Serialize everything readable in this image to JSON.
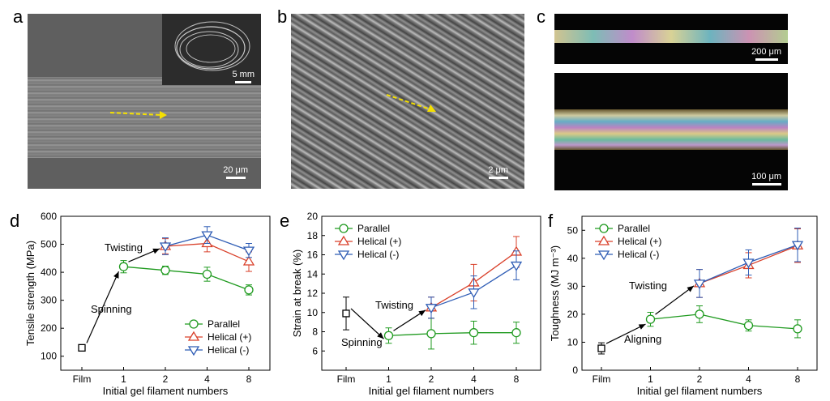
{
  "panels": {
    "a": {
      "letter": "a",
      "scale_main": "20 μm",
      "scale_inset": "5 mm"
    },
    "b": {
      "letter": "b",
      "scale": "2 μm"
    },
    "c": {
      "letter": "c",
      "scale_top": "200 μm",
      "scale_bottom": "100 μm"
    },
    "d": {
      "letter": "d"
    },
    "e": {
      "letter": "e"
    },
    "f": {
      "letter": "f"
    }
  },
  "colors": {
    "parallel": "#1f9a1f",
    "helical_plus": "#d9402a",
    "helical_minus": "#2f5db5",
    "film": "#000000",
    "arrow_yellow": "#f5e000"
  },
  "chart_data": [
    {
      "type": "line",
      "panel": "d",
      "categories": [
        "Film",
        "1",
        "2",
        "4",
        "8"
      ],
      "xlabel": "Initial gel filament numbers",
      "ylabel": "Tensile strength (MPa)",
      "ylim": [
        50,
        600
      ],
      "yticks": [
        "100",
        "200",
        "300",
        "400",
        "500",
        "600"
      ],
      "film": {
        "value": 130,
        "err": 7
      },
      "series": [
        {
          "name": "Parallel",
          "values": [
            null,
            420,
            407,
            393,
            337
          ],
          "err": [
            null,
            22,
            15,
            25,
            18
          ],
          "marker": "circle",
          "color": "#1f9a1f"
        },
        {
          "name": "Helical (+)",
          "values": [
            null,
            null,
            493,
            503,
            438
          ],
          "err": [
            null,
            null,
            27,
            30,
            35
          ],
          "marker": "triangle-up",
          "color": "#d9402a"
        },
        {
          "name": "Helical (-)",
          "values": [
            null,
            null,
            493,
            533,
            478
          ],
          "err": [
            null,
            null,
            30,
            30,
            25
          ],
          "marker": "triangle-down",
          "color": "#2f5db5"
        }
      ],
      "annotations": [
        "Twisting",
        "Spinning"
      ],
      "legend_position": "bottom-right"
    },
    {
      "type": "line",
      "panel": "e",
      "categories": [
        "Film",
        "1",
        "2",
        "4",
        "8"
      ],
      "xlabel": "Initial gel filament numbers",
      "ylabel": "Strain at break (%)",
      "ylim": [
        4,
        20
      ],
      "yticks": [
        "6",
        "8",
        "10",
        "12",
        "14",
        "16",
        "18",
        "20"
      ],
      "film": {
        "value": 9.9,
        "err": 1.7
      },
      "series": [
        {
          "name": "Parallel",
          "values": [
            null,
            7.6,
            7.8,
            7.9,
            7.9
          ],
          "err": [
            null,
            0.8,
            1.6,
            1.2,
            1.1
          ],
          "marker": "circle",
          "color": "#1f9a1f"
        },
        {
          "name": "Helical (+)",
          "values": [
            null,
            null,
            10.5,
            13.1,
            16.3
          ],
          "err": [
            null,
            null,
            1.1,
            1.9,
            1.6
          ],
          "marker": "triangle-up",
          "color": "#d9402a"
        },
        {
          "name": "Helical (-)",
          "values": [
            null,
            null,
            10.5,
            12.1,
            14.9
          ],
          "err": [
            null,
            null,
            1.1,
            1.7,
            1.5
          ],
          "marker": "triangle-down",
          "color": "#2f5db5"
        }
      ],
      "annotations": [
        "Twisting",
        "Spinning"
      ],
      "legend_position": "top-left"
    },
    {
      "type": "line",
      "panel": "f",
      "categories": [
        "Film",
        "1",
        "2",
        "4",
        "8"
      ],
      "xlabel": "Initial gel filament numbers",
      "ylabel": "Toughness (MJ m⁻³)",
      "ylim": [
        0,
        55
      ],
      "yticks": [
        "0",
        "10",
        "20",
        "30",
        "40",
        "50"
      ],
      "film": {
        "value": 7.8,
        "err": 2.0
      },
      "series": [
        {
          "name": "Parallel",
          "values": [
            null,
            18.2,
            20.0,
            16.0,
            14.8
          ],
          "err": [
            null,
            2.5,
            3.0,
            2.0,
            3.2
          ],
          "marker": "circle",
          "color": "#1f9a1f"
        },
        {
          "name": "Helical (+)",
          "values": [
            null,
            null,
            31.0,
            37.5,
            44.5
          ],
          "err": [
            null,
            null,
            5.0,
            4.5,
            6.0
          ],
          "marker": "triangle-up",
          "color": "#d9402a"
        },
        {
          "name": "Helical (-)",
          "values": [
            null,
            null,
            31.0,
            38.5,
            44.8
          ],
          "err": [
            null,
            null,
            5.0,
            4.5,
            6.0
          ],
          "marker": "triangle-down",
          "color": "#2f5db5"
        }
      ],
      "annotations": [
        "Twisting",
        "Aligning"
      ],
      "legend_position": "top-left"
    }
  ]
}
